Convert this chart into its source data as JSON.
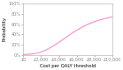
{
  "title": "",
  "xlabel": "Cost per QALY threshold",
  "ylabel": "Probability",
  "xlim": [
    0,
    10000
  ],
  "ylim": [
    0,
    1.0
  ],
  "xticks": [
    0,
    2000,
    4000,
    6000,
    8000,
    10000
  ],
  "xticklabels": [
    "£0",
    "£2,000",
    "£4,000",
    "£6,000",
    "£8,000",
    "£10,000"
  ],
  "yticks": [
    0,
    0.2,
    0.4,
    0.6,
    0.8,
    1.0
  ],
  "yticklabels": [
    "0%",
    "20%",
    "40%",
    "60%",
    "80%",
    "100%"
  ],
  "line_color": "#ff88cc",
  "line_width": 0.8,
  "curve_x": [
    0,
    50,
    100,
    200,
    300,
    400,
    500,
    600,
    700,
    800,
    900,
    1000,
    1200,
    1400,
    1600,
    1800,
    2000,
    2200,
    2400,
    2600,
    2800,
    3000,
    3200,
    3400,
    3600,
    3800,
    4000,
    4500,
    5000,
    5500,
    6000,
    6500,
    7000,
    7500,
    8000,
    8500,
    9000,
    9500,
    10000
  ],
  "curve_y": [
    0.004,
    0.005,
    0.006,
    0.007,
    0.008,
    0.009,
    0.01,
    0.011,
    0.012,
    0.013,
    0.015,
    0.018,
    0.022,
    0.028,
    0.035,
    0.044,
    0.055,
    0.068,
    0.083,
    0.1,
    0.118,
    0.138,
    0.158,
    0.178,
    0.2,
    0.222,
    0.245,
    0.305,
    0.365,
    0.425,
    0.48,
    0.53,
    0.575,
    0.615,
    0.648,
    0.675,
    0.7,
    0.722,
    0.742
  ],
  "background_color": "#ffffff",
  "tick_fontsize": 3.5,
  "label_fontsize": 3.8
}
